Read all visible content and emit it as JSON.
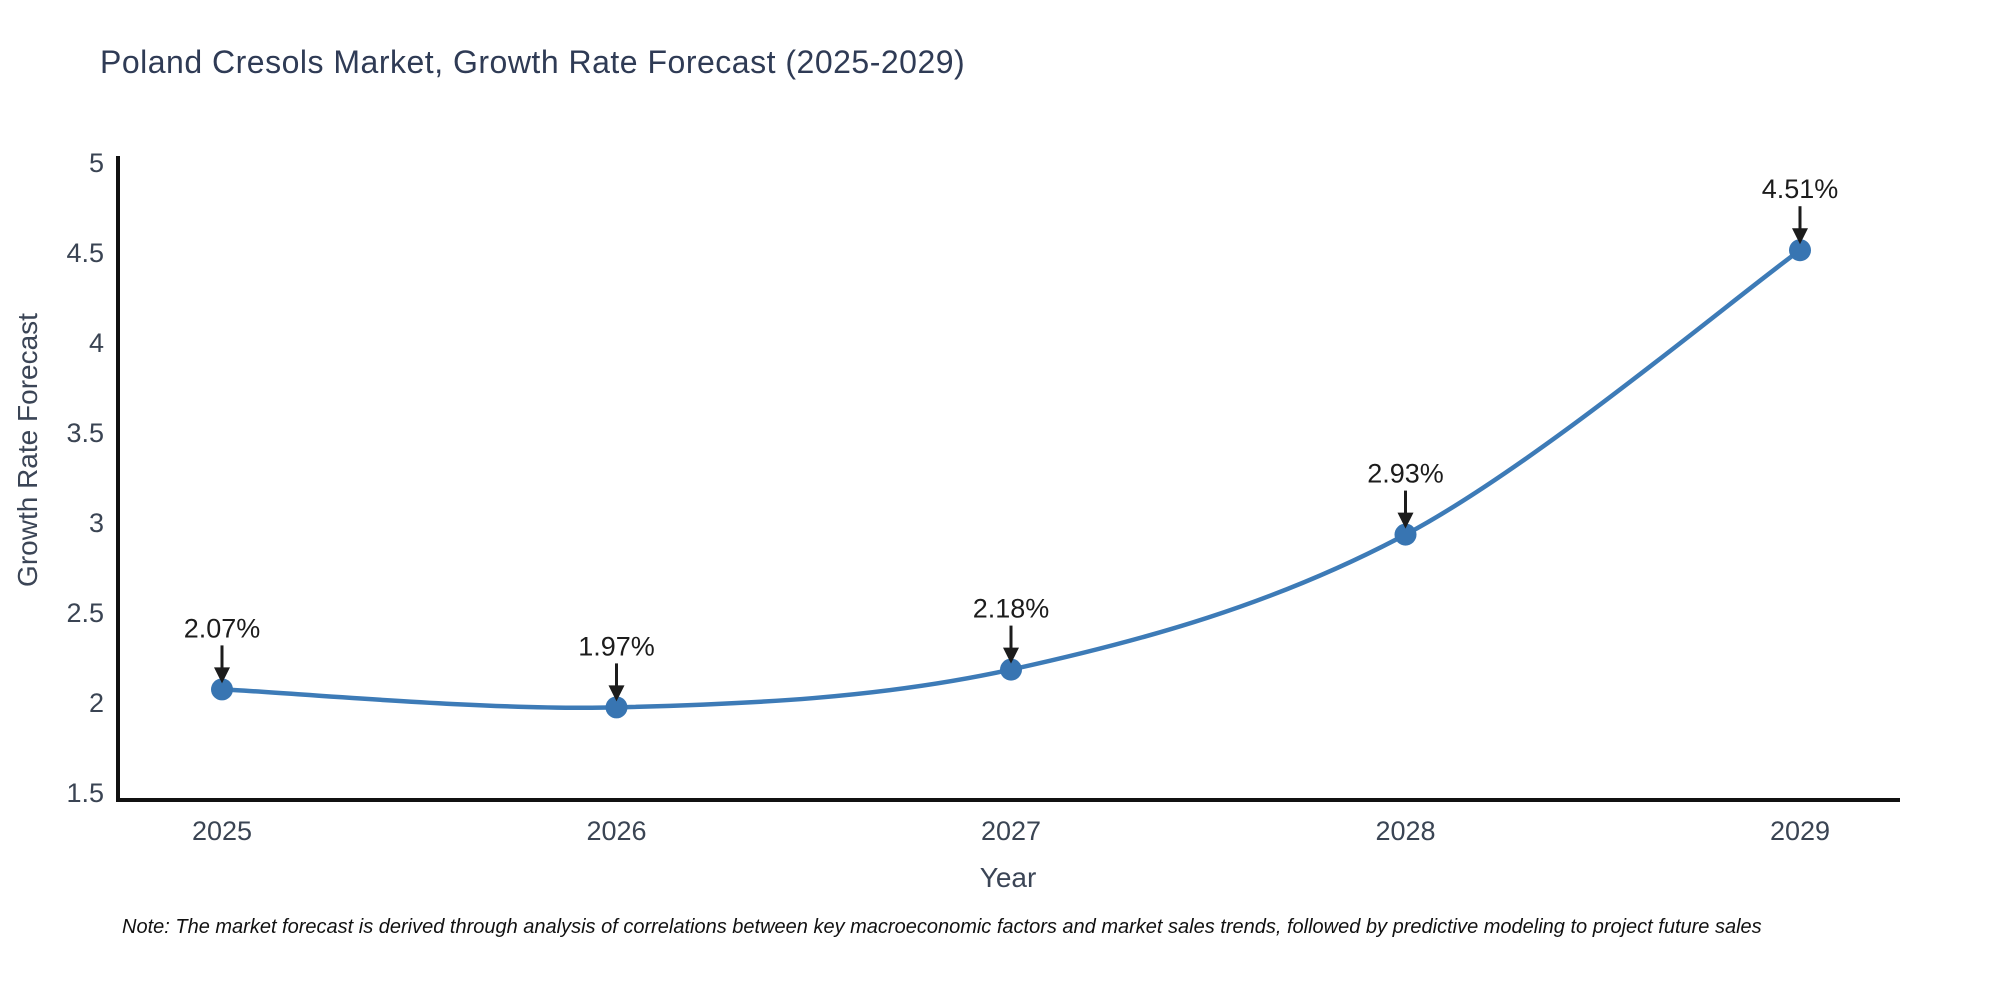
{
  "note": "Note: The market forecast is derived through analysis of correlations between key macroeconomic factors and market sales trends, followed by predictive modeling to project future sales",
  "chart_data": {
    "type": "line",
    "title": "Poland Cresols Market, Growth Rate Forecast (2025-2029)",
    "xlabel": "Year",
    "ylabel": "Growth Rate Forecast",
    "categories": [
      "2025",
      "2026",
      "2027",
      "2028",
      "2029"
    ],
    "series": [
      {
        "name": "Growth Rate Forecast",
        "values": [
          2.07,
          1.97,
          2.18,
          2.93,
          4.51
        ]
      }
    ],
    "point_labels": [
      "2.07%",
      "1.97%",
      "2.18%",
      "2.93%",
      "4.51%"
    ],
    "ylim": [
      1.5,
      5
    ],
    "yticks": [
      1.5,
      2,
      2.5,
      3,
      3.5,
      4,
      4.5,
      5
    ],
    "grid": false,
    "legend_position": "none",
    "line_shape": "spline",
    "colors": {
      "line": "#3d7bb7",
      "marker": "#3875b2",
      "axis": "#111111",
      "tick_label": "#3a4453",
      "annotation": "#1c1c1c"
    }
  }
}
